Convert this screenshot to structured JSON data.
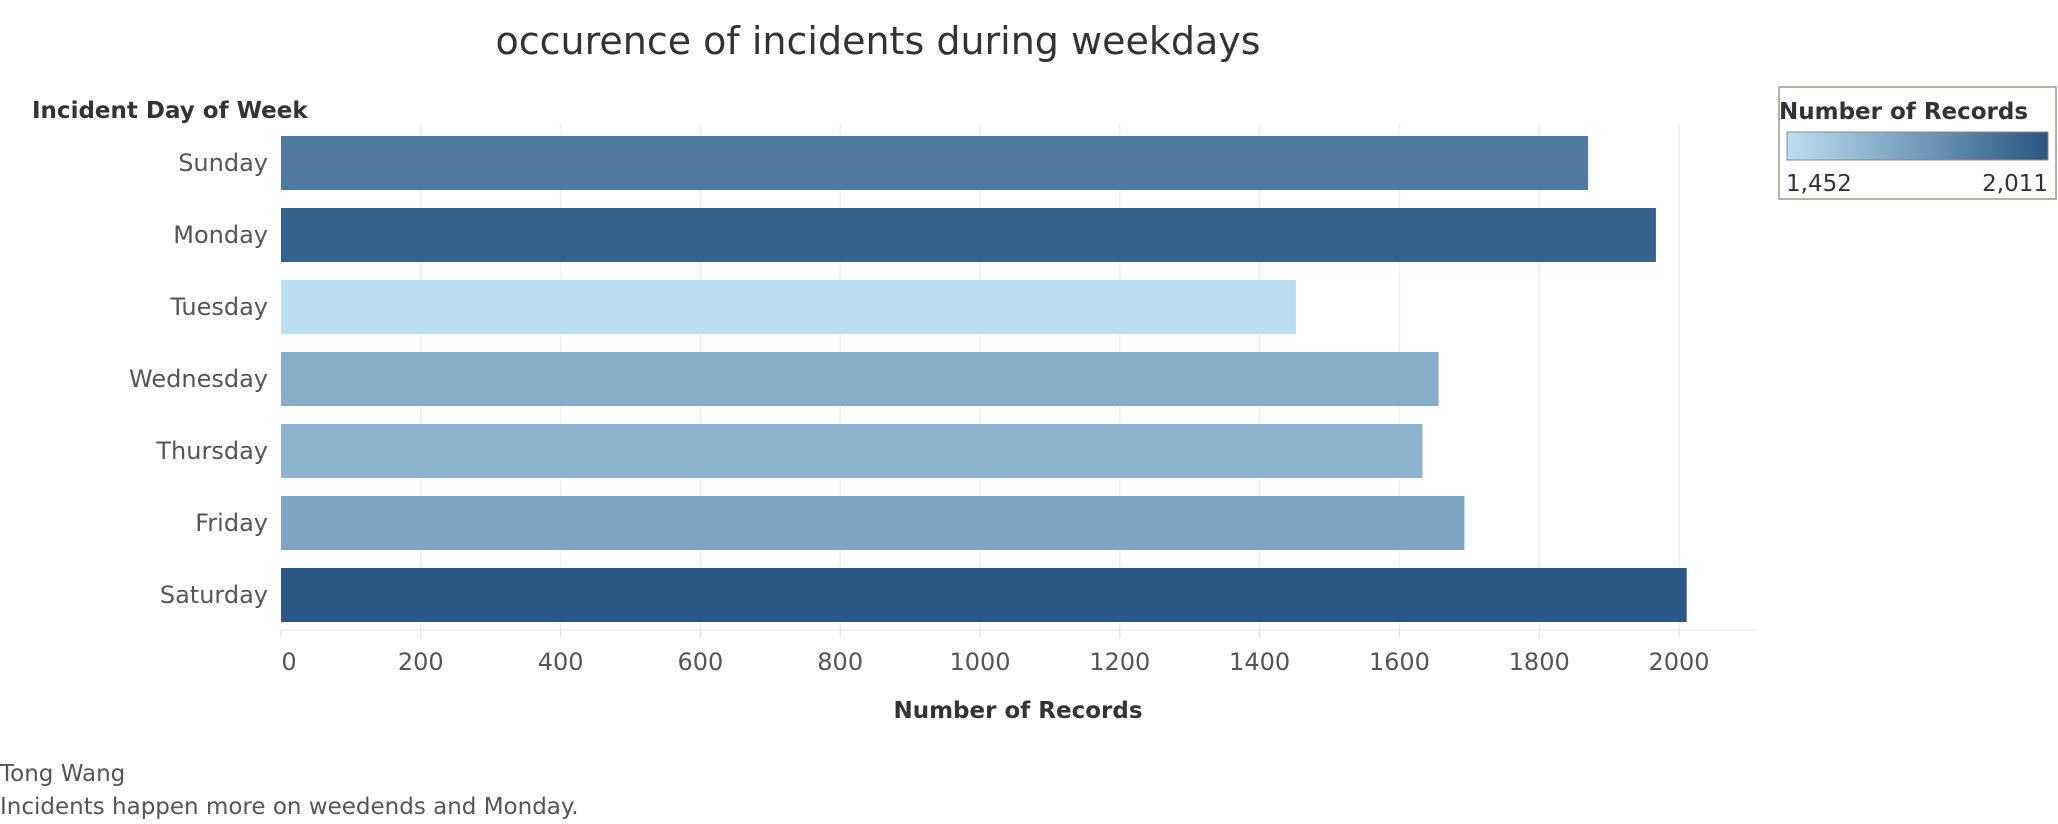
{
  "chart_data": {
    "type": "bar",
    "orientation": "horizontal",
    "title": "occurence of incidents during weekdays",
    "ylabel": "Incident Day of Week",
    "xlabel": "Number of Records",
    "categories": [
      "Sunday",
      "Monday",
      "Tuesday",
      "Wednesday",
      "Thursday",
      "Friday",
      "Saturday"
    ],
    "values": [
      1870,
      1967,
      1452,
      1656,
      1633,
      1693,
      2011
    ],
    "xlim": [
      0,
      2100
    ],
    "xticks": [
      0,
      200,
      400,
      600,
      800,
      1000,
      1200,
      1400,
      1600,
      1800,
      2000
    ],
    "grid": true,
    "color_scale": {
      "min_color": "#bcdef1",
      "max_color": "#2a5783"
    },
    "legend": {
      "title": "Number of Records",
      "min_label": "1,452",
      "max_label": "2,011",
      "position": "top-right"
    }
  },
  "caption": {
    "author": "Tong Wang",
    "note": "Incidents happen more on weedends and Monday."
  }
}
